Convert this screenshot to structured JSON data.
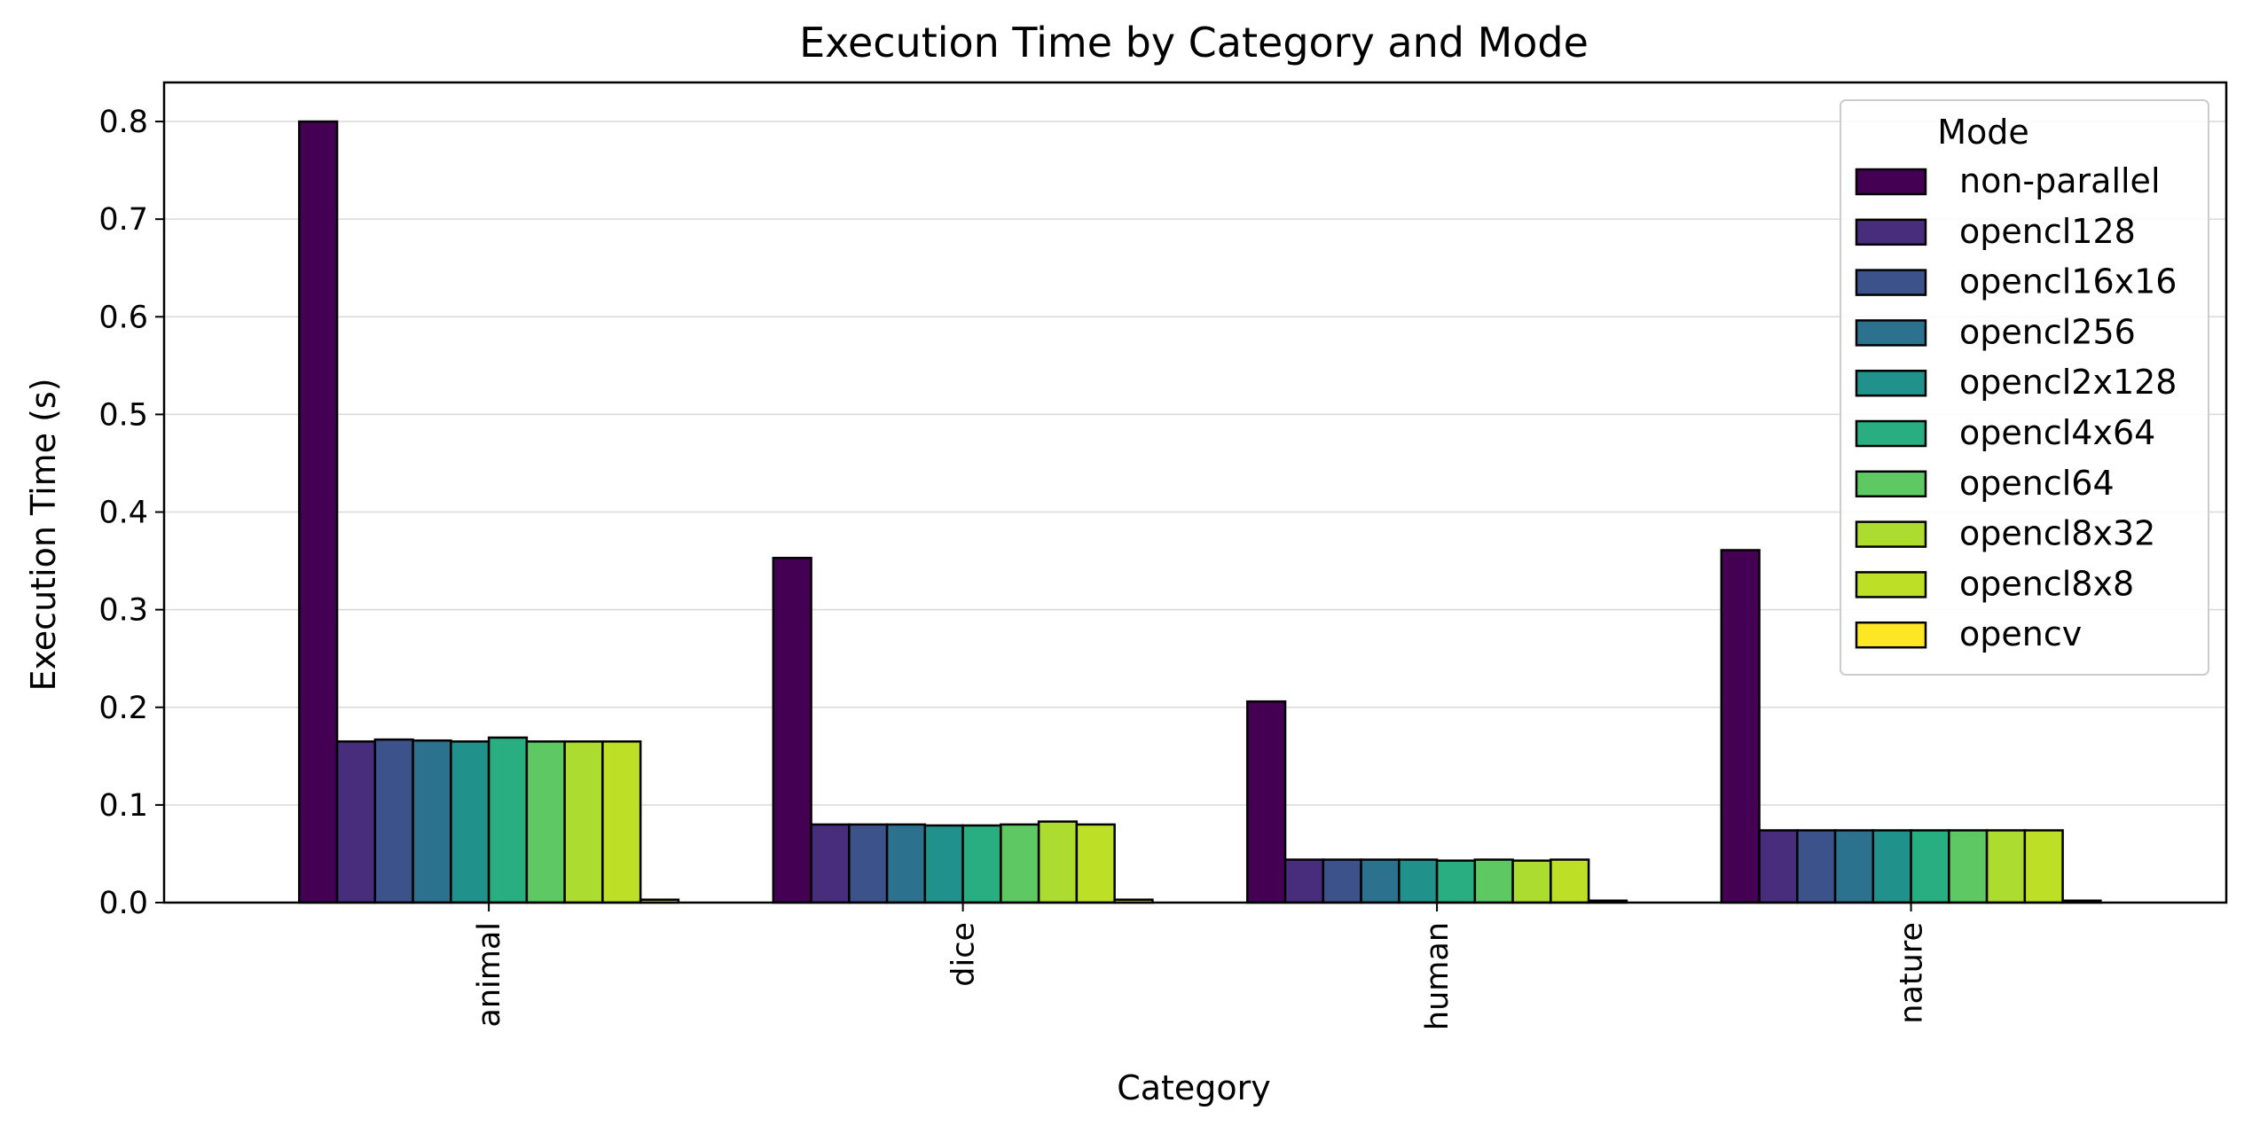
{
  "chart_data": {
    "type": "bar",
    "title": "Execution Time by Category and Mode",
    "xlabel": "Category",
    "ylabel": "Execution Time (s)",
    "ylim": [
      0,
      0.84
    ],
    "yticks": [
      "0.0",
      "0.1",
      "0.2",
      "0.3",
      "0.4",
      "0.5",
      "0.6",
      "0.7",
      "0.8"
    ],
    "grid": "horizontal",
    "legend_title": "Mode",
    "legend_position": "top-right",
    "categories": [
      "animal",
      "dice",
      "human",
      "nature"
    ],
    "series": [
      {
        "name": "non-parallel",
        "color": "#440154",
        "values": [
          0.8,
          0.353,
          0.206,
          0.361
        ]
      },
      {
        "name": "opencl128",
        "color": "#472d7b",
        "values": [
          0.165,
          0.08,
          0.044,
          0.074
        ]
      },
      {
        "name": "opencl16x16",
        "color": "#3b528b",
        "values": [
          0.167,
          0.08,
          0.044,
          0.074
        ]
      },
      {
        "name": "opencl256",
        "color": "#2c728e",
        "values": [
          0.166,
          0.08,
          0.044,
          0.074
        ]
      },
      {
        "name": "opencl2x128",
        "color": "#21918c",
        "values": [
          0.165,
          0.079,
          0.044,
          0.074
        ]
      },
      {
        "name": "opencl4x64",
        "color": "#28ae80",
        "values": [
          0.169,
          0.079,
          0.043,
          0.074
        ]
      },
      {
        "name": "opencl64",
        "color": "#5ec962",
        "values": [
          0.165,
          0.08,
          0.044,
          0.074
        ]
      },
      {
        "name": "opencl8x32",
        "color": "#addc30",
        "values": [
          0.165,
          0.083,
          0.043,
          0.074
        ]
      },
      {
        "name": "opencl8x8",
        "color": "#bddf26",
        "values": [
          0.165,
          0.08,
          0.044,
          0.074
        ]
      },
      {
        "name": "opencv",
        "color": "#fde725",
        "values": [
          0.003,
          0.003,
          0.002,
          0.002
        ]
      }
    ]
  }
}
